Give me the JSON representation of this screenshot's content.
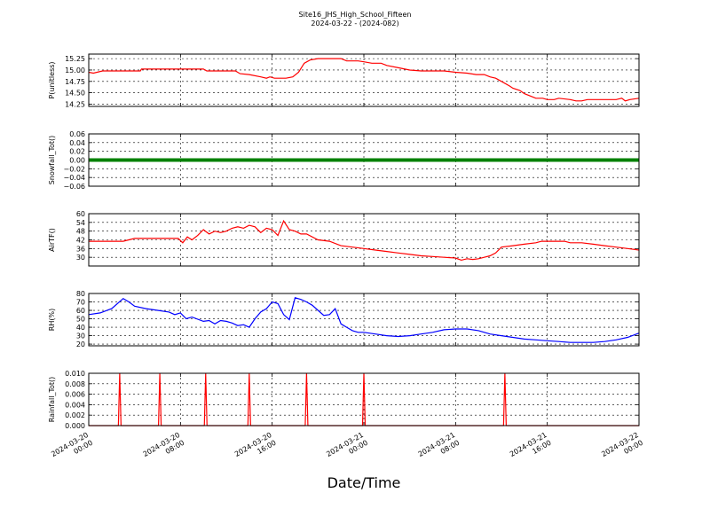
{
  "figure": {
    "title_line1": "Site16_JHS_High_School_Fifteen",
    "title_line2": "2024-03-22 - (2024-082)",
    "xlabel": "Date/Time"
  },
  "chart_data": [
    {
      "type": "line",
      "ylabel": "P(unitless)",
      "xlim": [
        0,
        48
      ],
      "ylim": [
        14.2,
        15.35
      ],
      "yticks": [
        "15.25",
        "15.00",
        "14.75",
        "14.50",
        "14.25"
      ],
      "ytick_values": [
        15.25,
        15.0,
        14.75,
        14.5,
        14.25
      ],
      "color": "#ff0000",
      "x": [
        0,
        0.4,
        1.2,
        4.5,
        4.6,
        10,
        10.3,
        12.8,
        13.2,
        14,
        15,
        15.5,
        15.8,
        16.2,
        16.4,
        17.2,
        17.8,
        18.3,
        18.8,
        19.3,
        20,
        20.5,
        21,
        21.5,
        22,
        22.5,
        23,
        23.5,
        24,
        24.7,
        25,
        25.5,
        26,
        27,
        28,
        29,
        30,
        31,
        32,
        33,
        33.8,
        34.5,
        35,
        35.5,
        36,
        36.7,
        37,
        37.6,
        38,
        38.6,
        39,
        39.6,
        40,
        40.6,
        41,
        42,
        42.5,
        43,
        43.5,
        44,
        44.5,
        45,
        46,
        46.5,
        46.8,
        47.2,
        48
      ],
      "y": [
        14.95,
        14.93,
        14.98,
        14.98,
        15.02,
        15.02,
        14.98,
        14.98,
        14.92,
        14.9,
        14.85,
        14.82,
        14.85,
        14.82,
        14.82,
        14.82,
        14.85,
        14.95,
        15.15,
        15.22,
        15.25,
        15.25,
        15.25,
        15.25,
        15.25,
        15.2,
        15.2,
        15.2,
        15.18,
        15.15,
        15.15,
        15.15,
        15.1,
        15.05,
        15.0,
        14.98,
        14.98,
        14.98,
        14.95,
        14.93,
        14.9,
        14.9,
        14.85,
        14.82,
        14.75,
        14.65,
        14.6,
        14.55,
        14.48,
        14.42,
        14.38,
        14.38,
        14.35,
        14.35,
        14.38,
        14.35,
        14.32,
        14.32,
        14.35,
        14.35,
        14.35,
        14.35,
        14.35,
        14.38,
        14.32,
        14.35,
        14.38
      ]
    },
    {
      "type": "scatter",
      "ylabel": "Snowfall_Tot()",
      "xlim": [
        0,
        48
      ],
      "ylim": [
        -0.06,
        0.06
      ],
      "yticks": [
        "0.06",
        "0.04",
        "0.02",
        "0.00",
        "−0.02",
        "−0.04",
        "−0.06"
      ],
      "ytick_values": [
        0.06,
        0.04,
        0.02,
        0.0,
        -0.02,
        -0.04,
        -0.06
      ],
      "color": "#008000",
      "constant_value": 0.0
    },
    {
      "type": "line",
      "ylabel": "AirTF()",
      "xlim": [
        0,
        48
      ],
      "ylim": [
        24,
        60
      ],
      "yticks": [
        "60",
        "54",
        "48",
        "42",
        "36",
        "30"
      ],
      "ytick_values": [
        60,
        54,
        48,
        42,
        36,
        30
      ],
      "color": "#ff0000",
      "x": [
        0,
        2,
        3,
        3.5,
        4,
        5,
        6,
        7,
        7.8,
        8.2,
        8.6,
        9,
        9.5,
        10,
        10.5,
        11,
        11.5,
        12,
        12.5,
        13,
        13.5,
        14,
        14.5,
        15,
        15.5,
        16,
        16.5,
        17,
        17.5,
        18,
        18.5,
        19,
        20,
        21,
        22,
        23,
        24,
        25,
        26,
        27,
        28,
        29,
        30,
        31,
        32,
        32.5,
        33,
        33.5,
        34,
        34.5,
        35,
        35.5,
        36,
        37,
        38,
        39,
        39.5,
        40,
        40.5,
        41,
        41.5,
        42,
        43,
        44,
        45,
        46,
        47,
        48
      ],
      "y": [
        41,
        41,
        41,
        42,
        43,
        43,
        43,
        43,
        43,
        40,
        44,
        42,
        45,
        49,
        46,
        48,
        47,
        48,
        50,
        51,
        50,
        52,
        51,
        47,
        50,
        49,
        45,
        55,
        49,
        48,
        46,
        46,
        42,
        41,
        38,
        37,
        36,
        35,
        34,
        33,
        32,
        31,
        30.5,
        30,
        29.5,
        28,
        29,
        28.5,
        29,
        30,
        31,
        33,
        37,
        38,
        39,
        40,
        41,
        41,
        41,
        41,
        41,
        40,
        40,
        39,
        38,
        37,
        36,
        35
      ]
    },
    {
      "type": "line",
      "ylabel": "RH(%)",
      "xlim": [
        0,
        48
      ],
      "ylim": [
        18,
        80
      ],
      "yticks": [
        "80",
        "70",
        "60",
        "50",
        "40",
        "30",
        "20"
      ],
      "ytick_values": [
        80,
        70,
        60,
        50,
        40,
        30,
        20
      ],
      "color": "#0000ff",
      "x": [
        0,
        1,
        2,
        3,
        3.5,
        4,
        5,
        6,
        7,
        7.5,
        8,
        8.5,
        9,
        10,
        10.5,
        11,
        11.5,
        12,
        12.5,
        13,
        13.5,
        14,
        14.5,
        15,
        15.5,
        16,
        16.5,
        17,
        17.5,
        18,
        18.5,
        19,
        19.5,
        20,
        20.5,
        21,
        21.5,
        22,
        22.5,
        23,
        23.5,
        24,
        25,
        26,
        27,
        28,
        29,
        30,
        31,
        32,
        33,
        34,
        35,
        36,
        37,
        38,
        39,
        40,
        41,
        42,
        43,
        44,
        45,
        46,
        47,
        48
      ],
      "y": [
        55,
        57,
        62,
        74,
        70,
        65,
        62,
        60,
        58,
        55,
        57,
        50,
        52,
        47,
        48,
        44,
        48,
        47,
        45,
        42,
        43,
        40,
        50,
        58,
        62,
        70,
        68,
        55,
        49,
        75,
        73,
        70,
        66,
        60,
        54,
        55,
        62,
        44,
        40,
        36,
        34,
        34,
        32,
        30,
        29,
        30,
        32,
        34,
        37,
        38,
        38,
        36,
        32,
        30,
        28,
        26,
        25,
        24,
        23,
        22,
        22,
        22,
        23,
        25,
        28,
        33
      ]
    },
    {
      "type": "line",
      "ylabel": "Rainfall_Tot()",
      "xlim": [
        0,
        48
      ],
      "ylim": [
        0,
        0.01
      ],
      "yticks": [
        "0.010",
        "0.008",
        "0.006",
        "0.004",
        "0.002",
        "0.000"
      ],
      "ytick_values": [
        0.01,
        0.008,
        0.006,
        0.004,
        0.002,
        0.0
      ],
      "color": "#ff0000",
      "spike_x": [
        2.7,
        6.2,
        10.2,
        14,
        19,
        24,
        36.3
      ],
      "spike_value": 0.01
    }
  ],
  "x_axis": {
    "ticks": [
      0,
      8,
      16,
      24,
      32,
      40,
      48
    ],
    "tick_labels": [
      [
        "2024-03-20",
        "00:00"
      ],
      [
        "2024-03-20",
        "08:00"
      ],
      [
        "2024-03-20",
        "16:00"
      ],
      [
        "2024-03-21",
        "00:00"
      ],
      [
        "2024-03-21",
        "08:00"
      ],
      [
        "2024-03-21",
        "16:00"
      ],
      [
        "2024-03-22",
        "00:00"
      ]
    ]
  }
}
